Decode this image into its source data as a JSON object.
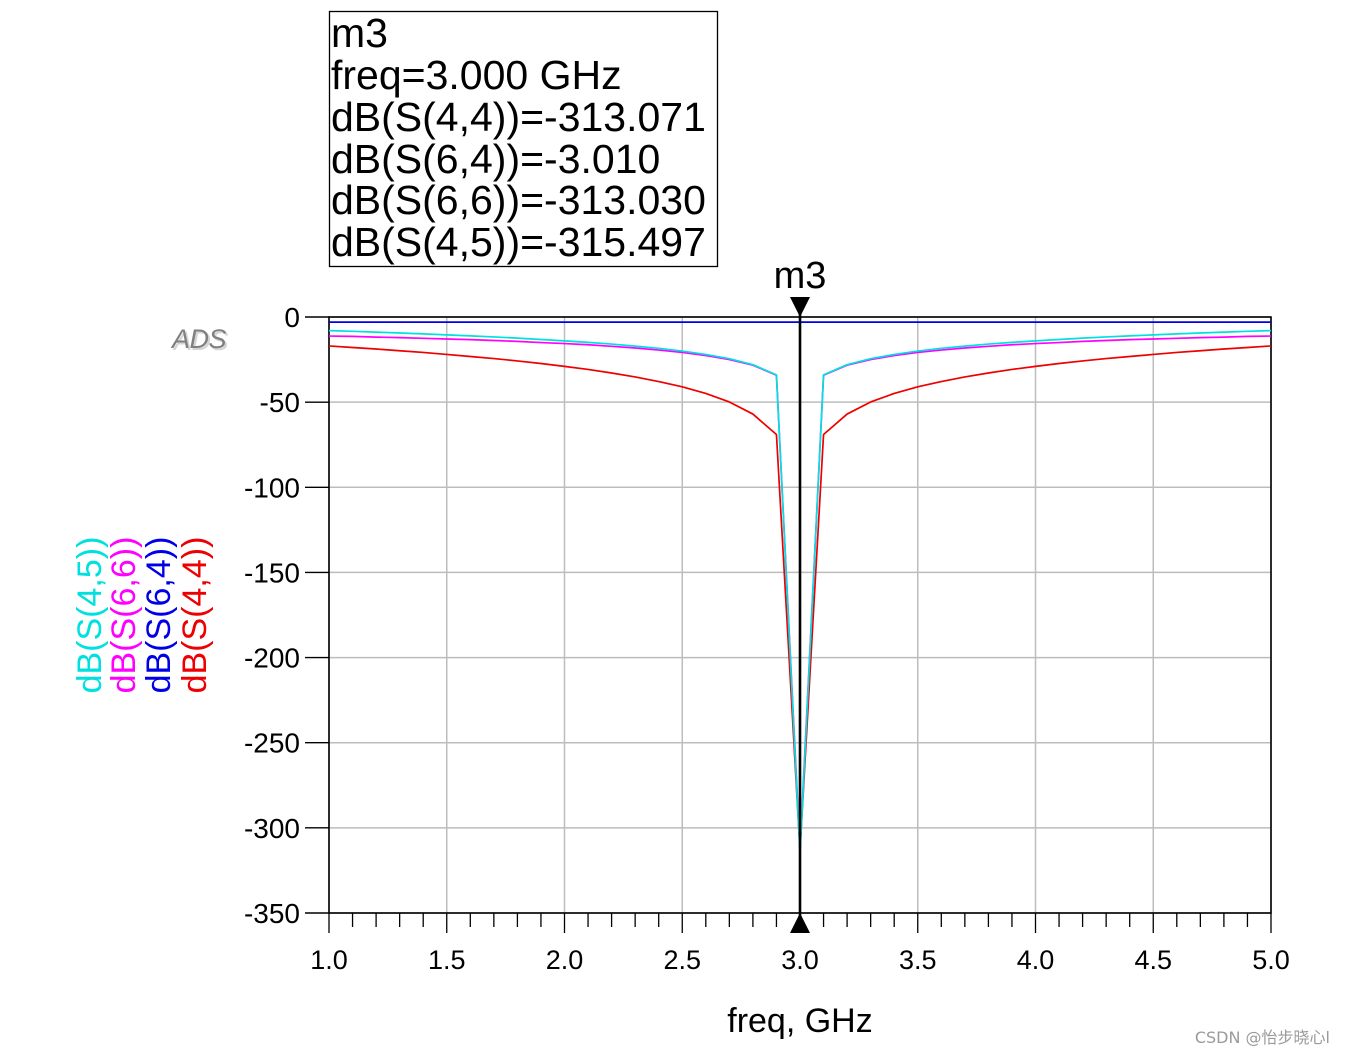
{
  "chart_data": {
    "type": "line",
    "xlabel": "freq, GHz",
    "xlim": [
      1.0,
      5.0
    ],
    "ylim": [
      -350,
      0
    ],
    "grid": true,
    "xticks": [
      1.0,
      1.5,
      2.0,
      2.5,
      3.0,
      3.5,
      4.0,
      4.5,
      5.0
    ],
    "xtick_labels": [
      "1.0",
      "1.5",
      "2.0",
      "2.5",
      "3.0",
      "3.5",
      "4.0",
      "4.5",
      "5.0"
    ],
    "yticks": [
      0,
      -50,
      -100,
      -150,
      -200,
      -250,
      -300,
      -350
    ],
    "ytick_labels": [
      "0",
      "-50",
      "-100",
      "-150",
      "-200",
      "-250",
      "-300",
      "-350"
    ],
    "x": [
      1.0,
      1.1,
      1.2,
      1.3,
      1.4,
      1.5,
      1.6,
      1.7,
      1.8,
      1.9,
      2.0,
      2.1,
      2.2,
      2.3,
      2.4,
      2.5,
      2.6,
      2.7,
      2.8,
      2.9,
      3.0,
      3.1,
      3.2,
      3.3,
      3.4,
      3.5,
      3.6,
      3.7,
      3.8,
      3.9,
      4.0,
      4.1,
      4.2,
      4.3,
      4.4,
      4.5,
      4.6,
      4.7,
      4.8,
      4.9,
      5.0
    ],
    "series": [
      {
        "name": "dB(S(4,5))",
        "color": "#00e0e0",
        "values": [
          -8.0,
          -8.4,
          -8.9,
          -9.4,
          -9.9,
          -10.5,
          -11.1,
          -11.7,
          -12.4,
          -13.2,
          -14.0,
          -14.9,
          -15.9,
          -17.1,
          -18.4,
          -20.0,
          -22.0,
          -24.5,
          -28.0,
          -34.0,
          -315.497,
          -34.0,
          -28.0,
          -24.5,
          -22.0,
          -20.0,
          -18.4,
          -17.1,
          -15.9,
          -14.9,
          -14.0,
          -13.2,
          -12.4,
          -11.7,
          -11.1,
          -10.5,
          -9.9,
          -9.4,
          -8.9,
          -8.4,
          -8.0
        ]
      },
      {
        "name": "dB(S(6,6))",
        "color": "#ff00ff",
        "values": [
          -11.2,
          -11.4,
          -11.8,
          -12.1,
          -12.5,
          -12.9,
          -13.3,
          -13.8,
          -14.3,
          -15.0,
          -15.6,
          -16.3,
          -17.2,
          -18.2,
          -19.4,
          -20.8,
          -22.6,
          -25.0,
          -28.3,
          -34.2,
          -313.03,
          -34.2,
          -28.3,
          -25.0,
          -22.6,
          -20.8,
          -19.4,
          -18.2,
          -17.2,
          -16.3,
          -15.6,
          -15.0,
          -14.3,
          -13.8,
          -13.3,
          -12.9,
          -12.5,
          -12.1,
          -11.8,
          -11.4,
          -11.2
        ]
      },
      {
        "name": "dB(S(6,4))",
        "color": "#0000e6",
        "values": [
          -3.01,
          -3.01,
          -3.01,
          -3.01,
          -3.01,
          -3.01,
          -3.01,
          -3.01,
          -3.01,
          -3.01,
          -3.01,
          -3.01,
          -3.01,
          -3.01,
          -3.01,
          -3.01,
          -3.01,
          -3.01,
          -3.01,
          -3.01,
          -3.01,
          -3.01,
          -3.01,
          -3.01,
          -3.01,
          -3.01,
          -3.01,
          -3.01,
          -3.01,
          -3.01,
          -3.01,
          -3.01,
          -3.01,
          -3.01,
          -3.01,
          -3.01,
          -3.01,
          -3.01,
          -3.01,
          -3.01,
          -3.01
        ]
      },
      {
        "name": "dB(S(4,4))",
        "color": "#ee0000",
        "values": [
          -17.0,
          -17.9,
          -18.8,
          -19.8,
          -20.8,
          -22.0,
          -23.2,
          -24.4,
          -25.8,
          -27.3,
          -29.0,
          -30.8,
          -32.9,
          -35.2,
          -37.9,
          -41.0,
          -44.9,
          -49.9,
          -57.0,
          -69.0,
          -313.071,
          -69.0,
          -57.0,
          -49.9,
          -44.9,
          -41.0,
          -37.9,
          -35.2,
          -32.9,
          -30.8,
          -29.0,
          -27.3,
          -25.8,
          -24.4,
          -23.2,
          -22.0,
          -20.8,
          -19.8,
          -18.8,
          -17.9,
          -17.0
        ]
      }
    ],
    "marker": {
      "label": "m3",
      "x": 3.0,
      "readout": {
        "name": "m3",
        "freq": "freq=3.000 GHz",
        "values": [
          "dB(S(4,4))=-313.071",
          "dB(S(6,4))=-3.010",
          "dB(S(6,6))=-313.030",
          "dB(S(4,5))=-315.497"
        ]
      }
    }
  },
  "watermarks": {
    "logo": "ADS",
    "credit": "CSDN @怡步晓心l"
  }
}
